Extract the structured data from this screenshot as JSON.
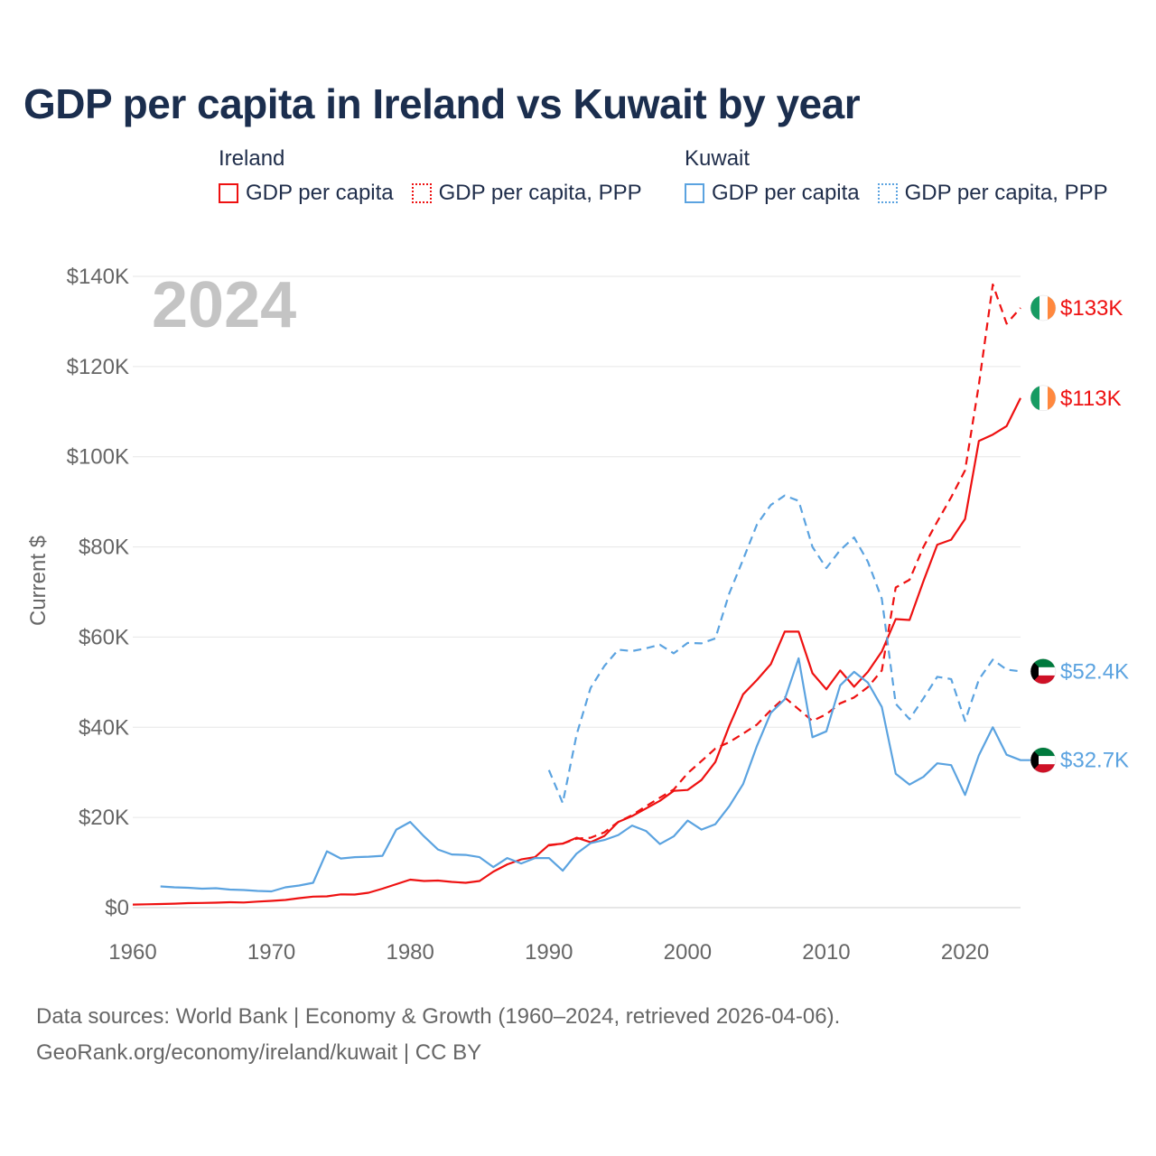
{
  "title": "GDP per capita in Ireland vs Kuwait by year",
  "legend": {
    "ireland": {
      "group": "Ireland",
      "gdp": "GDP per capita",
      "ppp": "GDP per capita, PPP"
    },
    "kuwait": {
      "group": "Kuwait",
      "gdp": "GDP per capita",
      "ppp": "GDP per capita, PPP"
    }
  },
  "year_label": "2024",
  "source": {
    "line1": "Data sources: World Bank | Economy & Growth (1960–2024, retrieved 2026-04-06).",
    "line2": "GeoRank.org/economy/ireland/kuwait | CC BY"
  },
  "colors": {
    "ireland": "#ee1111",
    "kuwait": "#5ba3e0",
    "grid": "#e6e6e6",
    "text": "#666666"
  },
  "chart_data": {
    "type": "line",
    "title": "GDP per capita in Ireland vs Kuwait by year",
    "xlabel": "",
    "ylabel": "Current $",
    "xlim": [
      1960,
      2024
    ],
    "ylim": [
      0,
      140000
    ],
    "x_ticks": [
      1960,
      1970,
      1980,
      1990,
      2000,
      2010,
      2020
    ],
    "y_ticks": [
      0,
      20000,
      40000,
      60000,
      80000,
      100000,
      120000,
      140000
    ],
    "y_tick_labels": [
      "$0",
      "$20K",
      "$40K",
      "$60K",
      "$80K",
      "$100K",
      "$120K",
      "$140K"
    ],
    "series": [
      {
        "name": "Ireland GDP per capita",
        "country": "ireland",
        "style": "solid",
        "end_label": "$113K",
        "start_year": 1960,
        "values": [
          690,
          750,
          800,
          880,
          1000,
          1050,
          1100,
          1200,
          1150,
          1350,
          1500,
          1700,
          2100,
          2450,
          2500,
          2950,
          2900,
          3300,
          4200,
          5200,
          6200,
          5900,
          6000,
          5700,
          5500,
          5900,
          8000,
          9600,
          10700,
          11200,
          13900,
          14200,
          15500,
          14500,
          15900,
          19000,
          20300,
          22000,
          23700,
          25900,
          26100,
          28300,
          32300,
          40300,
          47300,
          50500,
          54000,
          61200,
          61200,
          52000,
          48400,
          52600,
          49000,
          52300,
          56800,
          64000,
          63800,
          72400,
          80500,
          81600,
          86200,
          103500,
          104900,
          106800,
          113000
        ]
      },
      {
        "name": "Ireland GDP per capita, PPP",
        "country": "ireland",
        "style": "dashed",
        "end_label": "$133K",
        "start_year": 1990,
        "values": [
          13800,
          14200,
          15300,
          15500,
          16700,
          19000,
          20500,
          22500,
          24400,
          26200,
          29800,
          32500,
          35300,
          36700,
          38600,
          40600,
          43800,
          46600,
          44000,
          41400,
          42900,
          45300,
          46600,
          48900,
          52600,
          71000,
          72700,
          80000,
          85600,
          91000,
          97000,
          116000,
          138200,
          129500,
          133000
        ]
      },
      {
        "name": "Kuwait GDP per capita",
        "country": "kuwait",
        "style": "solid",
        "end_label": "$32.7K",
        "start_year": 1962,
        "values": [
          4700,
          4500,
          4400,
          4200,
          4300,
          4000,
          3900,
          3700,
          3600,
          4500,
          4900,
          5500,
          12500,
          10900,
          11200,
          11300,
          11500,
          17300,
          19000,
          15800,
          12900,
          11800,
          11700,
          11200,
          9000,
          11000,
          9800,
          11000,
          11000,
          8200,
          12000,
          14300,
          15000,
          16100,
          18200,
          17000,
          14100,
          15800,
          19300,
          17300,
          18500,
          22500,
          27400,
          35900,
          43200,
          46200,
          55300,
          37800,
          39100,
          49300,
          52300,
          49900,
          44500,
          29700,
          27300,
          29000,
          32000,
          31600,
          25000,
          33800,
          40000,
          33900,
          32700,
          32700
        ]
      },
      {
        "name": "Kuwait GDP per capita, PPP",
        "country": "kuwait",
        "style": "dashed",
        "end_label": "$52.4K",
        "start_year": 1990,
        "values": [
          30500,
          23200,
          38400,
          48700,
          53600,
          57200,
          56900,
          57500,
          58300,
          56400,
          58700,
          58600,
          59700,
          69700,
          77200,
          85000,
          89300,
          91400,
          90200,
          80000,
          75300,
          79300,
          82100,
          76700,
          68500,
          45200,
          41800,
          46400,
          51200,
          50700,
          41400,
          50600,
          55000,
          52800,
          52400
        ]
      }
    ]
  }
}
